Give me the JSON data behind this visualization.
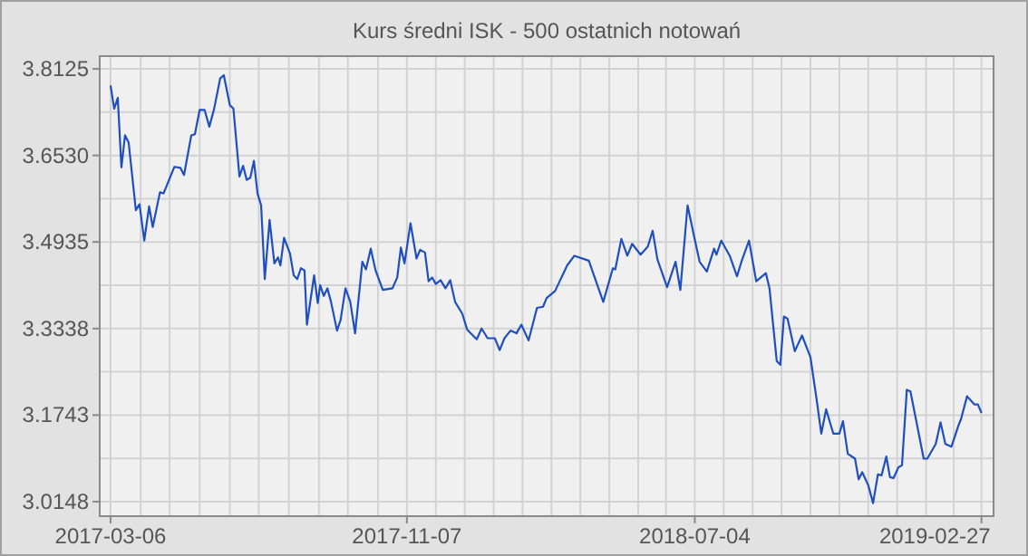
{
  "chart_data": {
    "type": "line",
    "title": "Kurs średni ISK - 500 ostatnich notowań",
    "x": [
      "2017-03-06",
      "2017-03-09",
      "2017-03-12",
      "2017-03-15",
      "2017-03-18",
      "2017-03-21",
      "2017-03-27",
      "2017-03-30",
      "2017-04-03",
      "2017-04-07",
      "2017-04-10",
      "2017-04-16",
      "2017-04-19",
      "2017-04-28",
      "2017-05-03",
      "2017-05-06",
      "2017-05-12",
      "2017-05-15",
      "2017-05-19",
      "2017-05-23",
      "2017-05-27",
      "2017-05-31",
      "2017-06-05",
      "2017-06-08",
      "2017-06-13",
      "2017-06-16",
      "2017-06-21",
      "2017-06-24",
      "2017-06-27",
      "2017-06-30",
      "2017-07-03",
      "2017-07-06",
      "2017-07-09",
      "2017-07-12",
      "2017-07-16",
      "2017-07-20",
      "2017-07-23",
      "2017-07-25",
      "2017-07-28",
      "2017-08-02",
      "2017-08-05",
      "2017-08-08",
      "2017-08-11",
      "2017-08-14",
      "2017-08-16",
      "2017-08-22",
      "2017-08-25",
      "2017-08-27",
      "2017-08-30",
      "2017-09-02",
      "2017-09-05",
      "2017-09-10",
      "2017-09-13",
      "2017-09-17",
      "2017-09-21",
      "2017-09-25",
      "2017-10-01",
      "2017-10-04",
      "2017-10-08",
      "2017-10-12",
      "2017-10-18",
      "2017-10-26",
      "2017-10-30",
      "2017-11-02",
      "2017-11-05",
      "2017-11-10",
      "2017-11-15",
      "2017-11-18",
      "2017-11-22",
      "2017-11-25",
      "2017-11-28",
      "2017-12-01",
      "2017-12-05",
      "2017-12-09",
      "2017-12-13",
      "2017-12-17",
      "2017-12-23",
      "2017-12-27",
      "2018-01-04",
      "2018-01-08",
      "2018-01-13",
      "2018-01-19",
      "2018-01-23",
      "2018-01-27",
      "2018-02-01",
      "2018-02-06",
      "2018-02-10",
      "2018-02-16",
      "2018-02-23",
      "2018-02-28",
      "2018-03-03",
      "2018-03-10",
      "2018-03-20",
      "2018-03-26",
      "2018-04-07",
      "2018-04-19",
      "2018-04-27",
      "2018-04-29",
      "2018-05-04",
      "2018-05-09",
      "2018-05-13",
      "2018-05-20",
      "2018-05-26",
      "2018-05-30",
      "2018-06-03",
      "2018-06-11",
      "2018-06-18",
      "2018-06-22",
      "2018-06-28",
      "2018-07-03",
      "2018-07-08",
      "2018-07-14",
      "2018-07-20",
      "2018-07-22",
      "2018-07-26",
      "2018-08-02",
      "2018-08-08",
      "2018-08-12",
      "2018-08-18",
      "2018-08-24",
      "2018-09-01",
      "2018-09-04",
      "2018-09-10",
      "2018-09-13",
      "2018-09-16",
      "2018-09-19",
      "2018-09-25",
      "2018-10-01",
      "2018-10-08",
      "2018-10-13",
      "2018-10-17",
      "2018-10-21",
      "2018-10-27",
      "2018-11-01",
      "2018-11-04",
      "2018-11-08",
      "2018-11-14",
      "2018-11-17",
      "2018-11-20",
      "2018-11-25",
      "2018-11-29",
      "2018-12-03",
      "2018-12-06",
      "2018-12-10",
      "2018-12-13",
      "2018-12-16",
      "2018-12-20",
      "2018-12-23",
      "2018-12-27",
      "2018-12-30",
      "2019-01-10",
      "2019-01-13",
      "2019-01-20",
      "2019-01-24",
      "2019-01-28",
      "2019-02-02",
      "2019-02-08",
      "2019-02-10",
      "2019-02-15",
      "2019-02-21",
      "2019-02-24",
      "2019-02-27"
    ],
    "series": [
      {
        "color": "#1f4fbf",
        "values": [
          3.782,
          3.739,
          3.759,
          3.631,
          3.69,
          3.677,
          3.552,
          3.563,
          3.496,
          3.559,
          3.521,
          3.585,
          3.583,
          3.632,
          3.63,
          3.617,
          3.69,
          3.692,
          3.737,
          3.737,
          3.706,
          3.739,
          3.795,
          3.801,
          3.746,
          3.739,
          3.614,
          3.634,
          3.608,
          3.612,
          3.643,
          3.583,
          3.561,
          3.425,
          3.534,
          3.454,
          3.465,
          3.45,
          3.501,
          3.472,
          3.432,
          3.425,
          3.445,
          3.441,
          3.341,
          3.432,
          3.381,
          3.414,
          3.394,
          3.408,
          3.383,
          3.33,
          3.35,
          3.408,
          3.383,
          3.325,
          3.457,
          3.443,
          3.481,
          3.441,
          3.405,
          3.408,
          3.428,
          3.483,
          3.454,
          3.528,
          3.463,
          3.479,
          3.474,
          3.421,
          3.428,
          3.416,
          3.423,
          3.408,
          3.423,
          3.383,
          3.361,
          3.332,
          3.314,
          3.334,
          3.316,
          3.316,
          3.294,
          3.316,
          3.33,
          3.325,
          3.341,
          3.312,
          3.372,
          3.374,
          3.39,
          3.403,
          3.45,
          3.468,
          3.459,
          3.383,
          3.445,
          3.443,
          3.499,
          3.468,
          3.49,
          3.47,
          3.485,
          3.514,
          3.461,
          3.41,
          3.457,
          3.405,
          3.561,
          3.508,
          3.457,
          3.439,
          3.481,
          3.47,
          3.496,
          3.468,
          3.43,
          3.459,
          3.496,
          3.421,
          3.436,
          3.408,
          3.274,
          3.267,
          3.356,
          3.352,
          3.292,
          3.321,
          3.281,
          3.205,
          3.14,
          3.185,
          3.14,
          3.14,
          3.163,
          3.103,
          3.094,
          3.056,
          3.069,
          3.045,
          3.012,
          3.065,
          3.063,
          3.098,
          3.06,
          3.058,
          3.078,
          3.082,
          3.221,
          3.218,
          3.094,
          3.094,
          3.121,
          3.161,
          3.121,
          3.116,
          3.156,
          3.167,
          3.209,
          3.194,
          3.194,
          3.178
        ]
      }
    ],
    "xlim": [
      "2017-02-25",
      "2019-03-09"
    ],
    "xticks": [
      {
        "value": "2017-03-06",
        "label": "2017-03-06"
      },
      {
        "value": "2017-03-31",
        "label": null
      },
      {
        "value": "2017-04-24",
        "label": null
      },
      {
        "value": "2017-05-19",
        "label": null
      },
      {
        "value": "2017-06-13",
        "label": null
      },
      {
        "value": "2017-07-07",
        "label": null
      },
      {
        "value": "2017-08-01",
        "label": null
      },
      {
        "value": "2017-08-26",
        "label": null
      },
      {
        "value": "2017-09-19",
        "label": null
      },
      {
        "value": "2017-10-14",
        "label": null
      },
      {
        "value": "2017-11-07",
        "label": "2017-11-07"
      },
      {
        "value": "2017-12-01",
        "label": null
      },
      {
        "value": "2017-12-25",
        "label": null
      },
      {
        "value": "2018-01-18",
        "label": null
      },
      {
        "value": "2018-02-11",
        "label": null
      },
      {
        "value": "2018-03-07",
        "label": null
      },
      {
        "value": "2018-03-31",
        "label": null
      },
      {
        "value": "2018-04-24",
        "label": null
      },
      {
        "value": "2018-05-18",
        "label": null
      },
      {
        "value": "2018-06-10",
        "label": null
      },
      {
        "value": "2018-07-04",
        "label": "2018-07-04"
      },
      {
        "value": "2018-07-28",
        "label": null
      },
      {
        "value": "2018-08-21",
        "label": null
      },
      {
        "value": "2018-09-14",
        "label": null
      },
      {
        "value": "2018-10-08",
        "label": null
      },
      {
        "value": "2018-11-01",
        "label": null
      },
      {
        "value": "2018-11-25",
        "label": null
      },
      {
        "value": "2018-12-19",
        "label": null
      },
      {
        "value": "2019-01-12",
        "label": null
      },
      {
        "value": "2019-02-04",
        "label": null
      },
      {
        "value": "2019-02-27",
        "label": "2019-02-27"
      }
    ],
    "ylim": [
      2.988,
      3.836
    ],
    "yticks": [
      {
        "value": 3.0148,
        "label": "3.0148"
      },
      {
        "value": 3.09455,
        "label": null
      },
      {
        "value": 3.1743,
        "label": "3.1743"
      },
      {
        "value": 3.25405,
        "label": null
      },
      {
        "value": 3.3338,
        "label": "3.3338"
      },
      {
        "value": 3.41365,
        "label": null
      },
      {
        "value": 3.4935,
        "label": "3.4935"
      },
      {
        "value": 3.57325,
        "label": null
      },
      {
        "value": 3.653,
        "label": "3.6530"
      },
      {
        "value": 3.73275,
        "label": null
      },
      {
        "value": 3.8125,
        "label": "3.8125"
      }
    ],
    "grid": true
  }
}
